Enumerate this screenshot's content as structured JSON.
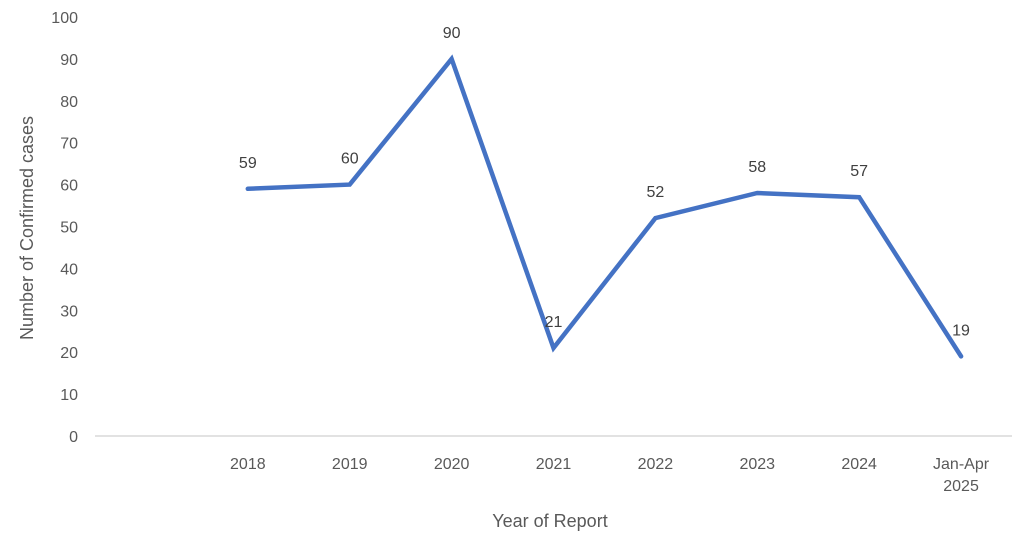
{
  "chart_data": {
    "type": "line",
    "title": "",
    "xlabel": "Year of Report",
    "ylabel": "Number of Confirmed cases",
    "categories": [
      "",
      "2018",
      "2019",
      "2020",
      "2021",
      "2022",
      "2023",
      "2024",
      "Jan-Apr 2025"
    ],
    "category_lines": [
      [
        ""
      ],
      [
        "2018"
      ],
      [
        "2019"
      ],
      [
        "2020"
      ],
      [
        "2021"
      ],
      [
        "2022"
      ],
      [
        "2023"
      ],
      [
        "2024"
      ],
      [
        "Jan-Apr",
        "2025"
      ]
    ],
    "series": [
      {
        "name": "Confirmed cases",
        "color": "#4472C4",
        "values": [
          null,
          59,
          60,
          90,
          21,
          52,
          58,
          57,
          19
        ]
      }
    ],
    "ylim": [
      0,
      100
    ],
    "yticks": [
      0,
      10,
      20,
      30,
      40,
      50,
      60,
      70,
      80,
      90,
      100
    ],
    "grid": false,
    "legend": "none",
    "data_labels": true
  }
}
